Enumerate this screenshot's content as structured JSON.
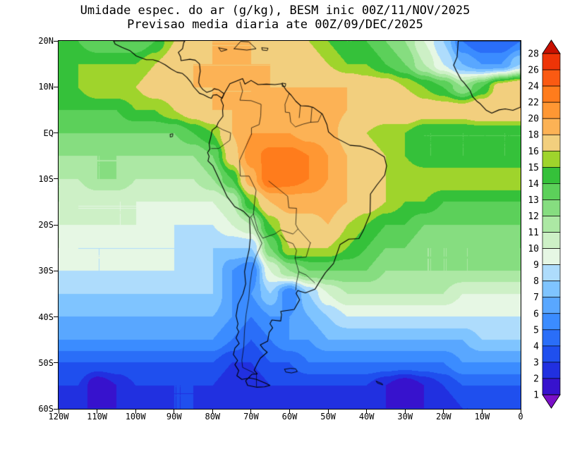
{
  "title": "Umidade espec. do ar (g/kg), BESM inic 00Z/11/NOV/2025",
  "subtitle": "Previsao media diaria ate 00Z/09/DEC/2025",
  "chart_data": {
    "type": "heatmap",
    "title": "Umidade espec. do ar (g/kg), BESM inic 00Z/11/NOV/2025",
    "subtitle": "Previsao media diaria ate 00Z/09/DEC/2025",
    "units": "g/kg",
    "x_axis": {
      "label": "longitude",
      "ticks": [
        "120W",
        "110W",
        "100W",
        "90W",
        "80W",
        "70W",
        "60W",
        "50W",
        "40W",
        "30W",
        "20W",
        "10W",
        "0"
      ],
      "range": [
        -120,
        0
      ]
    },
    "y_axis": {
      "label": "latitude",
      "ticks": [
        "20N",
        "10N",
        "EQ",
        "10S",
        "20S",
        "30S",
        "40S",
        "50S",
        "60S"
      ],
      "range": [
        20,
        -60
      ]
    },
    "colorbar": {
      "levels": [
        1,
        2,
        3,
        4,
        5,
        6,
        7,
        8,
        9,
        10,
        11,
        12,
        13,
        14,
        15,
        16,
        18,
        20,
        22,
        24,
        26,
        28
      ],
      "labels": [
        "28",
        "26",
        "24",
        "22",
        "20",
        "18",
        "16",
        "15",
        "14",
        "13",
        "12",
        "11",
        "10",
        "9",
        "8",
        "7",
        "6",
        "5",
        "4",
        "3",
        "2",
        "1"
      ],
      "colors": [
        "#7a10c8",
        "#3712cd",
        "#2130e0",
        "#1f4fee",
        "#2a6ef8",
        "#3b8cff",
        "#59a7ff",
        "#7fc4ff",
        "#aedcfc",
        "#e6f7e4",
        "#cdf0c6",
        "#ace8a4",
        "#86dd80",
        "#5cd05a",
        "#35c13a",
        "#9fd42c",
        "#f2cf7e",
        "#fcb255",
        "#ff9733",
        "#ff7c1c",
        "#fa5a12",
        "#ee3407",
        "#c81000"
      ]
    },
    "grid": {
      "lon_start": -120,
      "lon_step": 5,
      "lat_start": 20,
      "lat_step": -5,
      "values": [
        [
          14,
          14,
          13,
          13,
          13,
          14,
          16,
          17,
          18,
          18,
          18,
          17,
          17,
          16,
          15,
          14,
          14,
          13,
          12,
          10,
          8,
          5,
          4,
          4,
          5
        ],
        [
          14,
          15,
          15,
          15,
          15,
          16,
          17,
          18,
          18,
          18,
          18,
          18,
          17,
          17,
          16,
          15,
          15,
          14,
          13,
          11,
          9,
          7,
          6,
          6,
          8
        ],
        [
          15,
          15,
          16,
          16,
          16,
          17,
          17,
          18,
          18,
          18,
          18,
          18,
          18,
          18,
          18,
          18,
          17,
          17,
          16,
          15,
          14,
          12,
          14,
          17,
          18
        ],
        [
          14,
          14,
          14,
          14,
          15,
          15,
          16,
          17,
          18,
          18,
          18,
          19,
          19,
          19,
          19,
          18,
          18,
          18,
          18,
          17,
          17,
          17,
          18,
          18,
          18
        ],
        [
          13,
          13,
          13,
          13,
          13,
          13,
          13,
          14,
          15,
          18,
          20,
          20,
          20,
          19,
          19,
          17,
          16,
          15,
          15,
          14,
          14,
          14,
          14,
          14,
          14
        ],
        [
          12,
          12,
          12,
          12,
          12,
          12,
          12,
          12,
          13,
          17,
          21,
          23,
          23,
          22,
          20,
          18,
          17,
          16,
          15,
          14,
          14,
          14,
          14,
          14,
          14
        ],
        [
          11,
          11,
          12,
          12,
          11,
          11,
          11,
          11,
          12,
          14,
          19,
          24,
          23,
          22,
          20,
          18,
          17,
          16,
          16,
          16,
          16,
          16,
          16,
          16,
          16
        ],
        [
          11,
          10,
          10,
          10,
          10,
          10,
          10,
          10,
          10,
          11,
          15,
          18,
          19,
          19,
          19,
          18,
          17,
          16,
          15,
          15,
          14,
          14,
          14,
          14,
          14
        ],
        [
          10,
          10,
          10,
          10,
          10,
          9,
          9,
          9,
          9,
          10,
          11,
          15,
          17,
          17,
          18,
          16,
          15,
          14,
          14,
          13,
          13,
          13,
          13,
          13,
          13
        ],
        [
          10,
          9,
          9,
          9,
          9,
          9,
          9,
          8,
          8,
          8,
          8,
          13,
          16,
          16,
          16,
          15,
          14,
          13,
          13,
          12,
          12,
          12,
          12,
          12,
          13
        ],
        [
          9,
          9,
          9,
          9,
          9,
          9,
          9,
          9,
          8,
          6,
          5,
          10,
          12,
          13,
          13,
          13,
          13,
          12,
          12,
          12,
          12,
          12,
          12,
          12,
          12
        ],
        [
          8,
          8,
          8,
          8,
          8,
          8,
          8,
          8,
          8,
          6,
          6,
          8,
          5,
          8,
          10,
          11,
          11,
          11,
          11,
          11,
          11,
          10,
          10,
          10,
          10
        ],
        [
          7,
          7,
          7,
          7,
          7,
          7,
          7,
          7,
          7,
          6,
          5,
          6,
          6,
          7,
          8,
          9,
          9,
          9,
          9,
          9,
          9,
          9,
          9,
          9,
          9
        ],
        [
          6,
          6,
          6,
          6,
          6,
          6,
          6,
          6,
          6,
          5,
          4,
          5,
          6,
          6,
          7,
          7,
          7,
          7,
          7,
          7,
          7,
          7,
          8,
          8,
          8
        ],
        [
          4,
          4,
          4,
          4,
          4,
          4,
          4,
          4,
          4,
          3,
          3,
          4,
          4,
          5,
          5,
          5,
          5,
          5,
          5,
          5,
          5,
          6,
          6,
          6,
          6
        ],
        [
          3,
          3,
          1,
          2,
          3,
          3,
          3,
          3,
          3,
          2,
          2,
          3,
          3,
          3,
          3,
          3,
          3,
          2,
          1,
          2,
          3,
          4,
          4,
          4,
          4
        ],
        [
          2,
          2,
          2,
          2,
          2,
          2,
          3,
          3,
          2,
          2,
          2,
          2,
          2,
          2,
          2,
          2,
          2,
          2,
          2,
          2,
          2,
          3,
          3,
          3,
          3
        ]
      ]
    }
  }
}
